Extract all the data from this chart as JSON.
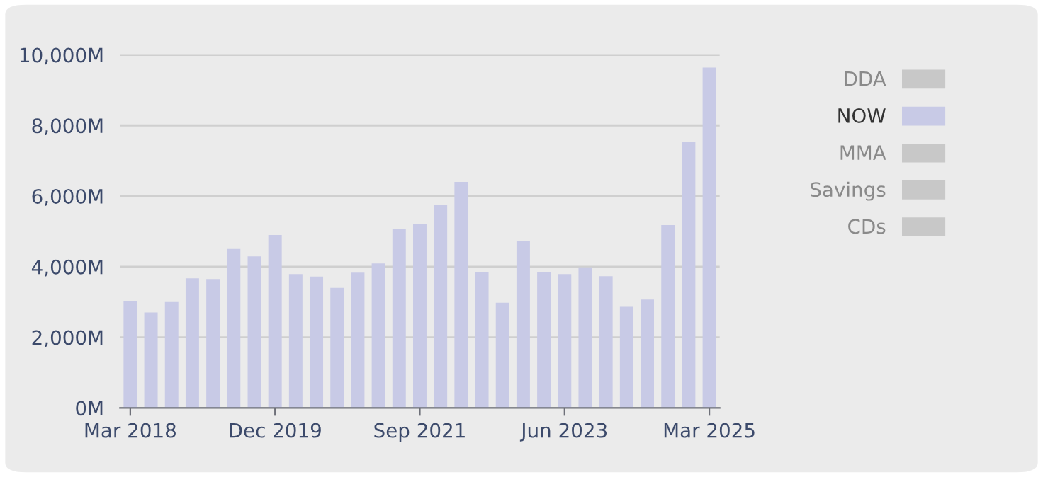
{
  "chart_data": {
    "type": "bar",
    "categories": [
      "Mar 2018",
      null,
      null,
      null,
      null,
      null,
      null,
      "Dec 2019",
      null,
      null,
      null,
      null,
      null,
      null,
      "Sep 2021",
      null,
      null,
      null,
      null,
      null,
      null,
      "Jun 2023",
      null,
      null,
      null,
      null,
      null,
      null,
      "Mar 2025"
    ],
    "series": [
      {
        "name": "DDA",
        "color": "#c8c8c8",
        "values": [
          null,
          null,
          null,
          null,
          null,
          null,
          null,
          null,
          null,
          null,
          null,
          null,
          null,
          null,
          null,
          null,
          null,
          null,
          null,
          null,
          null,
          null,
          null,
          null,
          null,
          null,
          null,
          null,
          null
        ]
      },
      {
        "name": "NOW",
        "color": "#c8cae6",
        "values": [
          3030,
          2700,
          3000,
          3670,
          3650,
          4500,
          4290,
          4900,
          3790,
          3720,
          3400,
          3830,
          4090,
          5070,
          5200,
          5750,
          6400,
          3850,
          2980,
          4720,
          3840,
          3790,
          3980,
          3730,
          2860,
          3070,
          5180,
          7530,
          9640
        ]
      },
      {
        "name": "MMA",
        "color": "#c8c8c8",
        "values": [
          null,
          null,
          null,
          null,
          null,
          null,
          null,
          null,
          null,
          null,
          null,
          null,
          null,
          null,
          null,
          null,
          null,
          null,
          null,
          null,
          null,
          null,
          null,
          null,
          null,
          null,
          null,
          null,
          null
        ]
      },
      {
        "name": "Savings",
        "color": "#c8c8c8",
        "values": [
          null,
          null,
          null,
          null,
          null,
          null,
          null,
          null,
          null,
          null,
          null,
          null,
          null,
          null,
          null,
          null,
          null,
          null,
          null,
          null,
          null,
          null,
          null,
          null,
          null,
          null,
          null,
          null,
          null
        ]
      },
      {
        "name": "CDs",
        "color": "#c8c8c8",
        "values": [
          null,
          null,
          null,
          null,
          null,
          null,
          null,
          null,
          null,
          null,
          null,
          null,
          null,
          null,
          null,
          null,
          null,
          null,
          null,
          null,
          null,
          null,
          null,
          null,
          null,
          null,
          null,
          null,
          null
        ]
      }
    ],
    "ylim": [
      0,
      10000
    ],
    "yticks": [
      {
        "value": 0,
        "label": "0M"
      },
      {
        "value": 2000,
        "label": "2,000M"
      },
      {
        "value": 4000,
        "label": "4,000M"
      },
      {
        "value": 6000,
        "label": "6,000M"
      },
      {
        "value": 8000,
        "label": "8,000M"
      },
      {
        "value": 10000,
        "label": "10,000M"
      }
    ],
    "grid": "y",
    "legend": "right"
  }
}
